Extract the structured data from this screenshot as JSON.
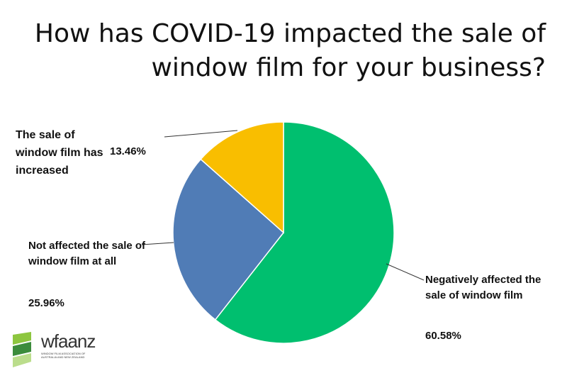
{
  "title": "How has COVID-19 impacted the sale of window film for your business?",
  "chart_data": {
    "type": "pie",
    "title": "How has COVID-19 impacted the sale of window film for your business?",
    "slices": [
      {
        "label": "Negatively affected the sale of window film",
        "value": 60.58,
        "value_label": "60.58%",
        "color": "#00BF6F"
      },
      {
        "label": "Not affected the sale of window film at all",
        "value": 25.96,
        "value_label": "25.96%",
        "color": "#507CB6"
      },
      {
        "label": "The sale of window film has increased",
        "value": 13.46,
        "value_label": "13.46%",
        "color": "#F9BE00"
      }
    ],
    "start_angle_deg": 0,
    "direction": "clockwise"
  },
  "logo": {
    "name": "wfaanz",
    "tagline": "WINDOW FILM ASSOCIATION OF AUSTRALIA AND NEW ZEALAND",
    "colors": [
      "#8DC63F",
      "#3C8C3C",
      "#2E6BA8"
    ]
  }
}
